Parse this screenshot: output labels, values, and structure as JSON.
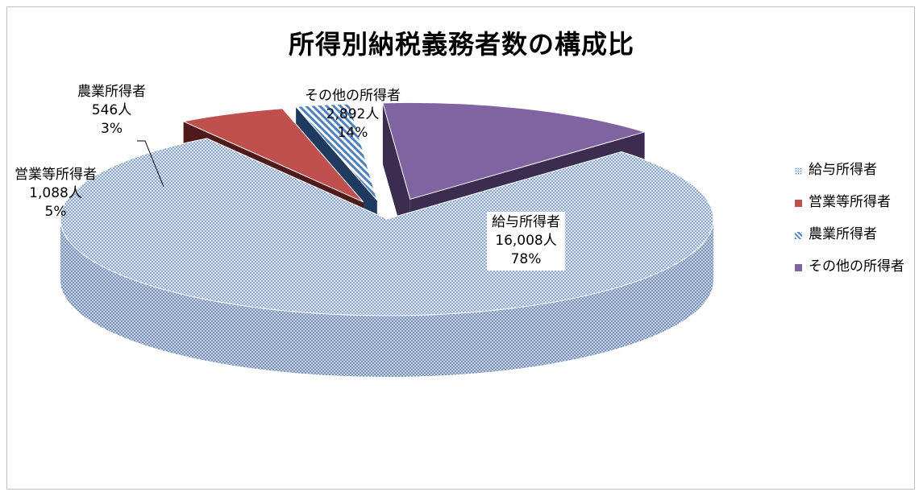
{
  "chart_data": {
    "type": "pie",
    "title": "所得別納税義務者数の構成比",
    "legend_position": "right",
    "slices": [
      {
        "name": "給与所得者",
        "count_label": "16,008人",
        "value": 16008,
        "percent_label": "78%",
        "percent": 78,
        "color": "#b8cce4"
      },
      {
        "name": "営業等所得者",
        "count_label": "1,088人",
        "value": 1088,
        "percent_label": "5%",
        "percent": 5,
        "color": "#c0504d"
      },
      {
        "name": "農業所得者",
        "count_label": "546人",
        "value": 546,
        "percent_label": "3%",
        "percent": 3,
        "color": "#4f81bd"
      },
      {
        "name": "その他の所得者",
        "count_label": "2,892人",
        "value": 2892,
        "percent_label": "14%",
        "percent": 14,
        "color": "#8064a2"
      }
    ],
    "legend": [
      "給与所得者",
      "営業等所得者",
      "農業所得者",
      "その他の所得者"
    ]
  }
}
